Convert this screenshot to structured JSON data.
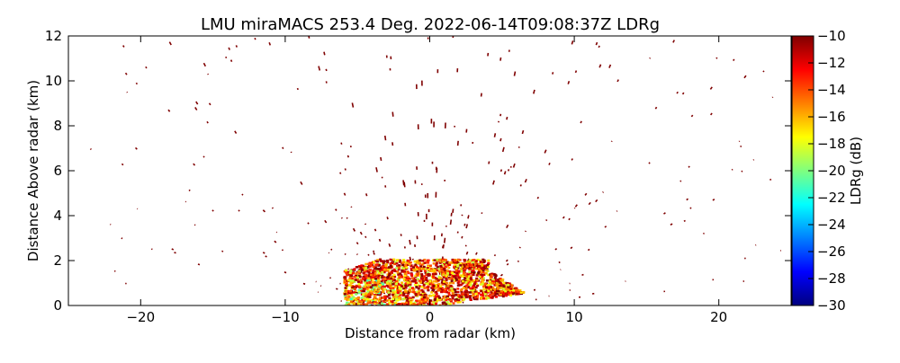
{
  "chart_data": {
    "type": "heatmap",
    "title": "LMU miraMACS 253.4 Deg. 2022-06-14T09:08:37Z  LDRg",
    "xlabel": "Distance from radar (km)",
    "ylabel": "Distance Above radar  (km)",
    "xlim": [
      -25,
      25
    ],
    "ylim": [
      0,
      12
    ],
    "xticks": [
      -20,
      -10,
      0,
      10,
      20
    ],
    "yticks": [
      0,
      2,
      4,
      6,
      8,
      10,
      12
    ],
    "colorbar": {
      "label": "LDRg (dB)",
      "range": [
        -30,
        -10
      ],
      "ticks": [
        -10,
        -12,
        -14,
        -16,
        -18,
        -20,
        -22,
        -24,
        -26,
        -28,
        -30
      ],
      "colormap": "jet"
    },
    "features": {
      "dense_echo_region": {
        "x_range": [
          -6,
          8
        ],
        "y_range": [
          0,
          2.1
        ],
        "ldr_range": [
          -22,
          -10
        ]
      },
      "sparse_speckle": {
        "x_range": [
          -24,
          24
        ],
        "y_range": [
          0,
          12
        ],
        "ldr_value": -10
      }
    }
  },
  "colors": {
    "speckle": "#7f0000",
    "jet_stops": [
      "#00007f",
      "#0000ff",
      "#007fff",
      "#00ffff",
      "#7fff7f",
      "#ffff00",
      "#ff7f00",
      "#ff0000",
      "#7f0000"
    ]
  }
}
